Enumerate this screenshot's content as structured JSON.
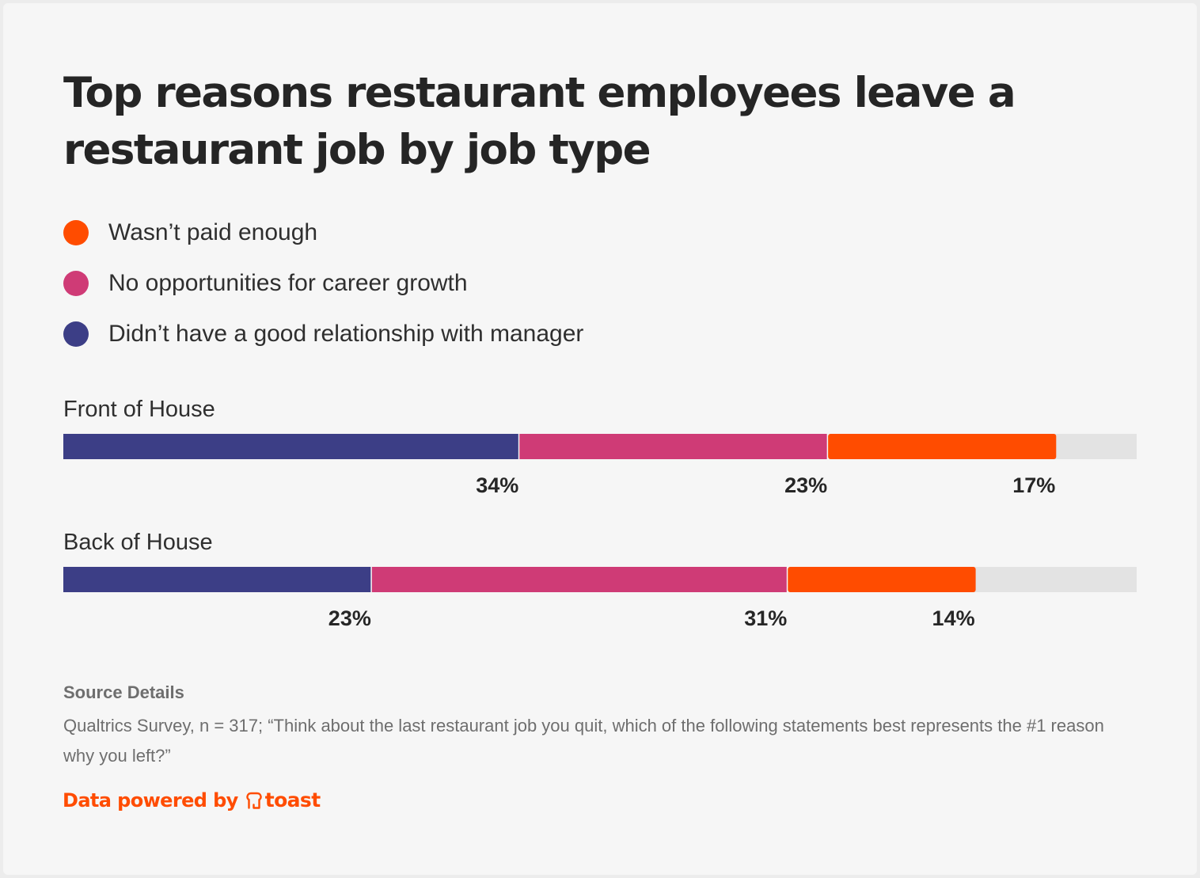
{
  "title": "Top reasons restaurant employees leave a restaurant job by job type",
  "legend": [
    {
      "label": "Wasn’t paid enough",
      "color": "#ff4c00"
    },
    {
      "label": "No opportunities for career growth",
      "color": "#cf3b76"
    },
    {
      "label": "Didn’t have a good relationship with manager",
      "color": "#3c3e86"
    }
  ],
  "chart_data": {
    "type": "bar",
    "orientation": "horizontal",
    "stacked": true,
    "title": "Top reasons restaurant employees leave a restaurant job by job type",
    "categories": [
      "Front of House",
      "Back of House"
    ],
    "series": [
      {
        "name": "Didn’t have a good relationship with manager",
        "color": "#3c3e86",
        "values": [
          34,
          23
        ],
        "labels": [
          "34%",
          "23%"
        ]
      },
      {
        "name": "No opportunities for career growth",
        "color": "#cf3b76",
        "values": [
          23,
          31
        ],
        "labels": [
          "23%",
          "31%"
        ]
      },
      {
        "name": "Wasn’t paid enough",
        "color": "#ff4c00",
        "values": [
          17,
          14
        ],
        "labels": [
          "17%",
          "14%"
        ]
      }
    ],
    "xlim": [
      0,
      80
    ],
    "track_color": "#e3e3e3",
    "grid": false,
    "legend_position": "top-left"
  },
  "source": {
    "heading": "Source Details",
    "text": "Qualtrics Survey, n = 317; “Think about the last restaurant job you quit, which of the following statements best represents the #1 reason why you left?”"
  },
  "footer": {
    "text": "Data powered by",
    "brand": "toast",
    "logo_icon": "toast-bread-icon",
    "color": "#ff4c00"
  }
}
